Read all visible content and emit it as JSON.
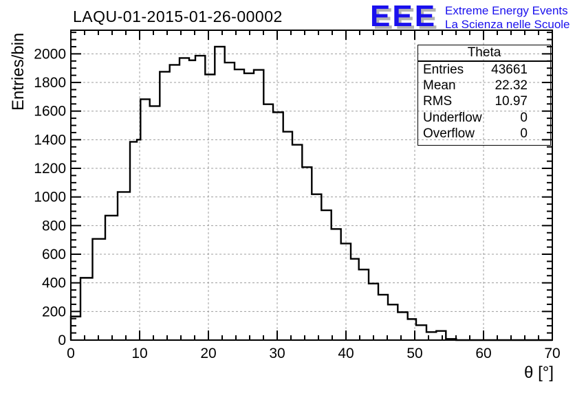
{
  "title": "LAQU-01-2015-01-26-00002",
  "logo": {
    "acronym": "EEE",
    "line1": "Extreme Energy Events",
    "line2": "La Scienza nelle Scuole",
    "color": "#1a10ee",
    "shadow_color": "#b2b2b2"
  },
  "stats_box": {
    "header": "Theta",
    "rows": [
      {
        "label": "Entries",
        "value": "43661"
      },
      {
        "label": "Mean",
        "value": "22.32"
      },
      {
        "label": "RMS",
        "value": "10.97"
      },
      {
        "label": "Underflow",
        "value": "0"
      },
      {
        "label": "Overflow",
        "value": "0"
      }
    ]
  },
  "chart_data": {
    "type": "bar",
    "subtype": "step-histogram",
    "title": "LAQU-01-2015-01-26-00002",
    "xlabel": "θ [°]",
    "ylabel": "Entries/bin",
    "xlim": [
      0,
      70
    ],
    "ylim": [
      0,
      2165
    ],
    "x_major_ticks": [
      0,
      10,
      20,
      30,
      40,
      50,
      60,
      70
    ],
    "x_minor_step_deg": 2,
    "y_major_step": 200,
    "y_label_max": 2000,
    "y_minor_step": 50,
    "grid": true,
    "grid_style": "dashed",
    "bin_edges_deg": [
      0,
      1.4,
      3.15,
      5.0,
      6.8,
      8.6,
      9.6,
      10.13,
      11.47,
      12.93,
      14.37,
      15.8,
      17.2,
      18.1,
      19.53,
      20.93,
      22.37,
      23.8,
      25.2,
      26.6,
      28.03,
      29.4,
      30.87,
      32.2,
      33.63,
      35.03,
      36.43,
      37.87,
      39.27,
      40.7,
      41.87,
      43.3,
      44.7,
      46.1,
      47.53,
      48.97,
      50.2,
      51.7,
      53.13,
      54.53,
      56.03,
      70.0
    ],
    "counts": [
      165,
      435,
      707,
      870,
      1035,
      1385,
      1400,
      1683,
      1635,
      1875,
      1923,
      1971,
      1955,
      1987,
      1856,
      2050,
      1939,
      1891,
      1864,
      1888,
      1648,
      1592,
      1456,
      1365,
      1208,
      1019,
      907,
      776,
      675,
      568,
      493,
      395,
      317,
      248,
      195,
      147,
      104,
      56,
      64,
      8,
      0
    ],
    "peak_count": 2050,
    "legend_position": "none"
  },
  "colors": {
    "line": "#000000",
    "grid": "#9c9c9c",
    "background": "#ffffff",
    "text": "#000000"
  }
}
